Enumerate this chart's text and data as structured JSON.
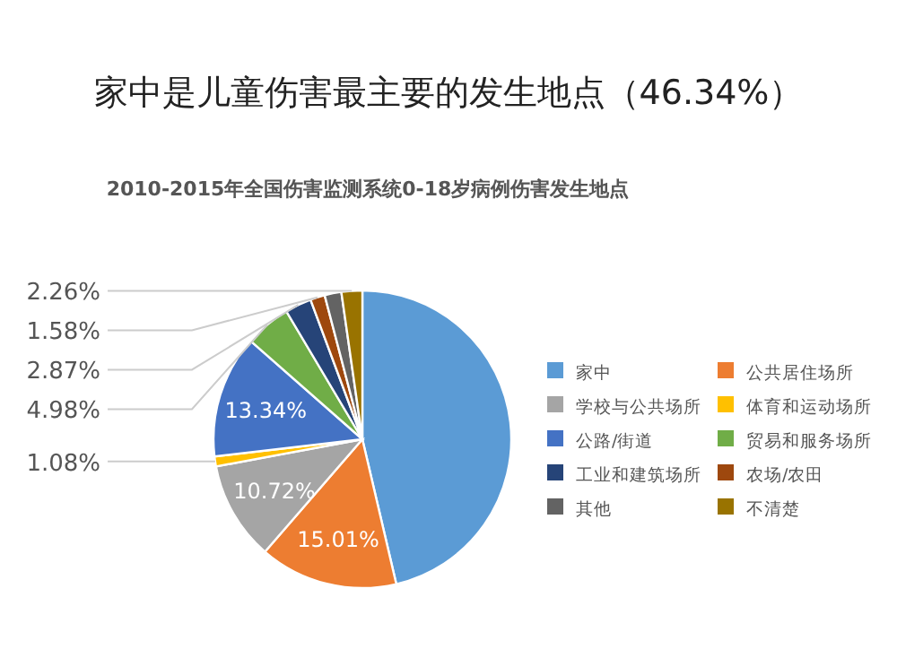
{
  "chart_data": {
    "type": "pie",
    "title": "家中是儿童伤害最主要的发生地点（46.34%）",
    "subtitle": "2010-2015年全国伤害监测系统0-18岁病例伤害发生地点",
    "categories": [
      "家中",
      "公共居住场所",
      "学校与公共场所",
      "体育和运动场所",
      "公路/街道",
      "贸易和服务场所",
      "工业和建筑场所",
      "农场/农田",
      "其他",
      "不清楚"
    ],
    "values": [
      46.34,
      15.01,
      10.72,
      1.08,
      13.34,
      4.98,
      2.87,
      1.58,
      1.82,
      2.26
    ],
    "value_labels": [
      null,
      "15.01%",
      "10.72%",
      "1.08%",
      "13.34%",
      "4.98%",
      "2.87%",
      "1.58%",
      null,
      "2.26%"
    ],
    "colors": [
      "#5b9bd5",
      "#ed7d31",
      "#a5a5a5",
      "#ffc000",
      "#4472c4",
      "#70ad47",
      "#264478",
      "#9e480e",
      "#636363",
      "#997300"
    ],
    "legend": "right"
  }
}
